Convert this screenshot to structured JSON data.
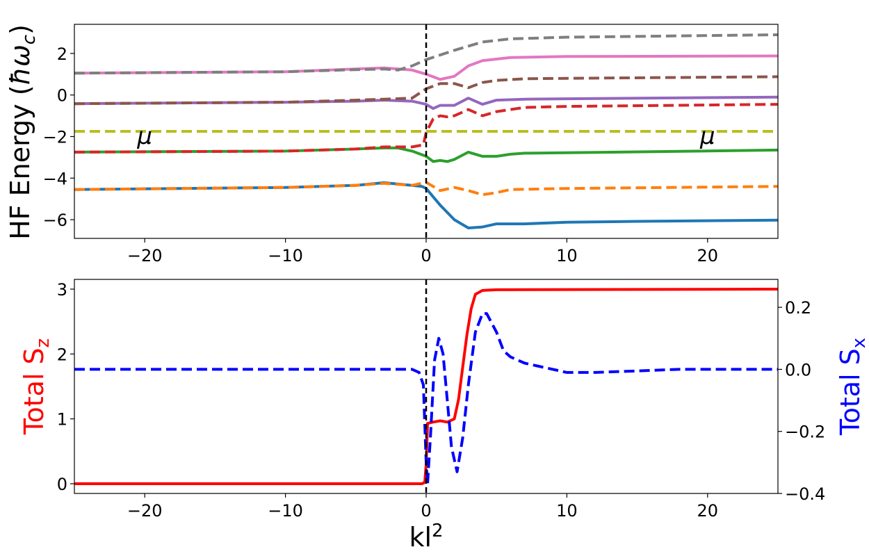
{
  "chart_data": [
    {
      "type": "line",
      "ylabel_text": "HF Energy (",
      "ylabel_symbol": "ħω",
      "ylabel_sub": "c",
      "ylabel_close": ")",
      "xlim": [
        -25,
        25
      ],
      "ylim": [
        -6.9,
        3.4
      ],
      "xticks": [
        -20,
        -10,
        0,
        10,
        20
      ],
      "xtick_labels": [
        "−20",
        "−10",
        "0",
        "10",
        "20"
      ],
      "yticks": [
        -6,
        -4,
        -2,
        0,
        2
      ],
      "ytick_labels": [
        "−6",
        "−4",
        "−2",
        "0",
        "2"
      ],
      "vline_x": 0,
      "vline_color": "#000000",
      "mu_label": "μ",
      "mu_label_x": [
        -20,
        20
      ],
      "grid": false,
      "series": [
        {
          "color": "#1f77b4",
          "dashed": false,
          "points": [
            [
              -25,
              -4.55
            ],
            [
              -10,
              -4.45
            ],
            [
              -5,
              -4.35
            ],
            [
              -3,
              -4.22
            ],
            [
              -1,
              -4.35
            ],
            [
              -0.3,
              -4.4
            ],
            [
              0,
              -4.5
            ],
            [
              1,
              -5.3
            ],
            [
              2,
              -6.0
            ],
            [
              3,
              -6.4
            ],
            [
              4,
              -6.35
            ],
            [
              5,
              -6.2
            ],
            [
              7,
              -6.2
            ],
            [
              10,
              -6.12
            ],
            [
              15,
              -6.08
            ],
            [
              25,
              -6.02
            ]
          ]
        },
        {
          "color": "#ff7f0e",
          "dashed": true,
          "points": [
            [
              -25,
              -4.55
            ],
            [
              -10,
              -4.45
            ],
            [
              -5,
              -4.35
            ],
            [
              -3,
              -4.25
            ],
            [
              -1,
              -4.35
            ],
            [
              0,
              -4.2
            ],
            [
              1,
              -4.6
            ],
            [
              2,
              -4.45
            ],
            [
              3,
              -4.6
            ],
            [
              4,
              -4.8
            ],
            [
              5,
              -4.7
            ],
            [
              6,
              -4.55
            ],
            [
              10,
              -4.5
            ],
            [
              25,
              -4.4
            ]
          ]
        },
        {
          "color": "#2ca02c",
          "dashed": false,
          "points": [
            [
              -25,
              -2.75
            ],
            [
              -10,
              -2.7
            ],
            [
              -5,
              -2.6
            ],
            [
              -3,
              -2.55
            ],
            [
              -2,
              -2.55
            ],
            [
              -1,
              -2.7
            ],
            [
              0,
              -2.95
            ],
            [
              0.5,
              -3.2
            ],
            [
              1,
              -3.15
            ],
            [
              1.5,
              -3.2
            ],
            [
              2,
              -3.1
            ],
            [
              3,
              -2.75
            ],
            [
              4,
              -2.95
            ],
            [
              5,
              -2.95
            ],
            [
              6,
              -2.85
            ],
            [
              7,
              -2.8
            ],
            [
              10,
              -2.78
            ],
            [
              25,
              -2.65
            ]
          ]
        },
        {
          "color": "#d62728",
          "dashed": true,
          "points": [
            [
              -25,
              -2.75
            ],
            [
              -10,
              -2.7
            ],
            [
              -5,
              -2.6
            ],
            [
              -3,
              -2.5
            ],
            [
              -1,
              -2.5
            ],
            [
              -0.2,
              -2.4
            ],
            [
              0,
              -1.8
            ],
            [
              0.5,
              -1.15
            ],
            [
              1,
              -1.0
            ],
            [
              1.5,
              -1.05
            ],
            [
              2,
              -1.0
            ],
            [
              3,
              -0.7
            ],
            [
              4,
              -1.0
            ],
            [
              5,
              -0.8
            ],
            [
              7,
              -0.6
            ],
            [
              10,
              -0.55
            ],
            [
              25,
              -0.45
            ]
          ]
        },
        {
          "color": "#9467bd",
          "dashed": false,
          "points": [
            [
              -25,
              -0.42
            ],
            [
              -10,
              -0.35
            ],
            [
              -5,
              -0.3
            ],
            [
              -3,
              -0.25
            ],
            [
              -1,
              -0.3
            ],
            [
              0,
              -0.45
            ],
            [
              0.5,
              -0.65
            ],
            [
              1,
              -0.5
            ],
            [
              2,
              -0.5
            ],
            [
              3,
              -0.15
            ],
            [
              4,
              -0.45
            ],
            [
              5,
              -0.25
            ],
            [
              7,
              -0.2
            ],
            [
              10,
              -0.18
            ],
            [
              25,
              -0.1
            ]
          ]
        },
        {
          "color": "#8c564b",
          "dashed": true,
          "points": [
            [
              -25,
              -0.42
            ],
            [
              -10,
              -0.35
            ],
            [
              -5,
              -0.25
            ],
            [
              -3,
              -0.2
            ],
            [
              -1,
              -0.15
            ],
            [
              0,
              0.3
            ],
            [
              1,
              0.55
            ],
            [
              2,
              0.55
            ],
            [
              3,
              0.35
            ],
            [
              4,
              0.6
            ],
            [
              5,
              0.7
            ],
            [
              7,
              0.78
            ],
            [
              10,
              0.8
            ],
            [
              25,
              0.88
            ]
          ]
        },
        {
          "color": "#e377c2",
          "dashed": false,
          "points": [
            [
              -25,
              1.05
            ],
            [
              -10,
              1.12
            ],
            [
              -5,
              1.25
            ],
            [
              -3,
              1.3
            ],
            [
              -1,
              1.2
            ],
            [
              0,
              1.0
            ],
            [
              1,
              0.75
            ],
            [
              2,
              0.9
            ],
            [
              3,
              1.4
            ],
            [
              4,
              1.65
            ],
            [
              6,
              1.8
            ],
            [
              10,
              1.85
            ],
            [
              25,
              1.88
            ]
          ]
        },
        {
          "color": "#7f7f7f",
          "dashed": true,
          "points": [
            [
              -25,
              1.05
            ],
            [
              -10,
              1.12
            ],
            [
              -5,
              1.22
            ],
            [
              -3,
              1.25
            ],
            [
              -2,
              1.2
            ],
            [
              -1,
              1.4
            ],
            [
              0,
              1.7
            ],
            [
              2,
              2.15
            ],
            [
              4,
              2.55
            ],
            [
              6,
              2.7
            ],
            [
              10,
              2.78
            ],
            [
              25,
              2.9
            ]
          ]
        },
        {
          "color": "#bcbd22",
          "dashed": true,
          "points": [
            [
              -25,
              -1.75
            ],
            [
              25,
              -1.75
            ]
          ]
        }
      ]
    },
    {
      "type": "line",
      "xlabel_text": "kl",
      "xlabel_sup": "2",
      "ylabel_left": "Total S",
      "ylabel_left_sub": "z",
      "ylabel_right": "Total S",
      "ylabel_right_sub": "x",
      "xlim": [
        -25,
        25
      ],
      "ylim_left": [
        -0.15,
        3.15
      ],
      "ylim_right": [
        -0.4,
        0.29
      ],
      "xticks": [
        -20,
        -10,
        0,
        10,
        20
      ],
      "xtick_labels": [
        "−20",
        "−10",
        "0",
        "10",
        "20"
      ],
      "yticks_left": [
        0,
        1,
        2,
        3
      ],
      "ytick_labels_left": [
        "0",
        "1",
        "2",
        "3"
      ],
      "yticks_right": [
        0.2,
        0.0,
        -0.2,
        -0.4
      ],
      "ytick_labels_right": [
        "0.2",
        "0.0",
        "−0.2",
        "−0.4"
      ],
      "vline_x": 0,
      "grid": false,
      "series": [
        {
          "color": "#ff0000",
          "dashed": false,
          "axis": "left",
          "points": [
            [
              -25,
              0
            ],
            [
              -0.3,
              0
            ],
            [
              -0.1,
              0.02
            ],
            [
              0,
              0.3
            ],
            [
              0.1,
              0.93
            ],
            [
              0.5,
              0.95
            ],
            [
              1,
              0.97
            ],
            [
              1.5,
              0.95
            ],
            [
              2,
              1.0
            ],
            [
              2.3,
              1.3
            ],
            [
              2.6,
              1.8
            ],
            [
              2.9,
              2.3
            ],
            [
              3.2,
              2.7
            ],
            [
              3.5,
              2.92
            ],
            [
              4,
              2.98
            ],
            [
              5,
              2.99
            ],
            [
              25,
              3.0
            ]
          ]
        },
        {
          "color": "#0000ff",
          "dashed": true,
          "axis": "right",
          "points": [
            [
              -25,
              0.0
            ],
            [
              -1,
              0.0
            ],
            [
              -0.5,
              -0.01
            ],
            [
              -0.2,
              -0.05
            ],
            [
              0,
              -0.3
            ],
            [
              0.1,
              -0.37
            ],
            [
              0.3,
              -0.22
            ],
            [
              0.6,
              0.03
            ],
            [
              0.9,
              0.1
            ],
            [
              1.2,
              0.05
            ],
            [
              1.5,
              -0.1
            ],
            [
              1.8,
              -0.25
            ],
            [
              2.2,
              -0.33
            ],
            [
              2.6,
              -0.22
            ],
            [
              3.0,
              -0.05
            ],
            [
              3.5,
              0.12
            ],
            [
              4.0,
              0.18
            ],
            [
              4.3,
              0.18
            ],
            [
              5,
              0.12
            ],
            [
              5.5,
              0.06
            ],
            [
              6,
              0.04
            ],
            [
              7,
              0.02
            ],
            [
              8,
              0.01
            ],
            [
              9,
              0.0
            ],
            [
              10,
              -0.01
            ],
            [
              12,
              -0.01
            ],
            [
              15,
              -0.005
            ],
            [
              18,
              0.0
            ],
            [
              25,
              0.0
            ]
          ]
        }
      ]
    }
  ]
}
